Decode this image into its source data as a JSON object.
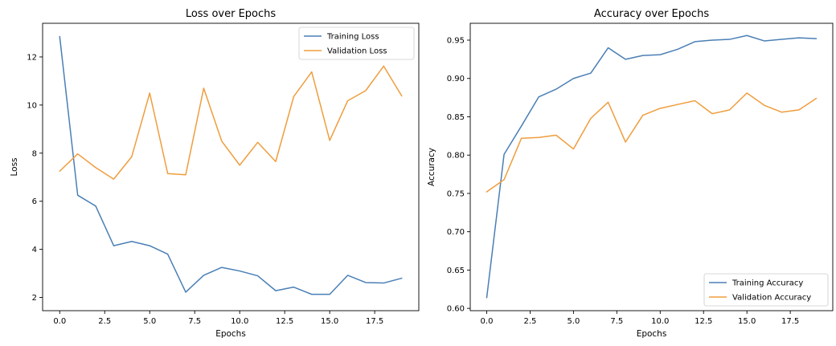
{
  "colors": {
    "training": "#4a7fb5",
    "validation": "#ef9d3d"
  },
  "chart_data": [
    {
      "type": "line",
      "title": "Loss over Epochs",
      "xlabel": "Epochs",
      "ylabel": "Loss",
      "xlim": [
        -0.95,
        19.95
      ],
      "ylim": [
        1.45,
        13.4
      ],
      "xticks": [
        0,
        2.5,
        5,
        7.5,
        10,
        12.5,
        15,
        17.5
      ],
      "xtick_labels": [
        "0.0",
        "2.5",
        "5.0",
        "7.5",
        "10.0",
        "12.5",
        "15.0",
        "17.5"
      ],
      "yticks": [
        2,
        4,
        6,
        8,
        10,
        12
      ],
      "ytick_labels": [
        "2",
        "4",
        "6",
        "8",
        "10",
        "12"
      ],
      "legend_position": "top-right",
      "grid": false,
      "x": [
        0,
        1,
        2,
        3,
        4,
        5,
        6,
        7,
        8,
        9,
        10,
        11,
        12,
        13,
        14,
        15,
        16,
        17,
        18,
        19
      ],
      "series": [
        {
          "name": "Training Loss",
          "color_key": "training",
          "values": [
            12.85,
            6.25,
            5.8,
            4.15,
            4.33,
            4.15,
            3.8,
            2.22,
            2.92,
            3.25,
            3.1,
            2.9,
            2.28,
            2.43,
            2.13,
            2.13,
            2.92,
            2.62,
            2.6,
            2.8
          ]
        },
        {
          "name": "Validation Loss",
          "color_key": "validation",
          "values": [
            7.25,
            7.97,
            7.4,
            6.92,
            7.85,
            10.5,
            7.15,
            7.1,
            10.7,
            8.5,
            7.5,
            8.45,
            7.65,
            10.35,
            11.38,
            8.53,
            10.18,
            10.6,
            11.62,
            10.38
          ]
        }
      ]
    },
    {
      "type": "line",
      "title": "Accuracy over Epochs",
      "xlabel": "Epochs",
      "ylabel": "Accuracy",
      "xlim": [
        -0.95,
        19.95
      ],
      "ylim": [
        0.597,
        0.972
      ],
      "xticks": [
        0,
        2.5,
        5,
        7.5,
        10,
        12.5,
        15,
        17.5
      ],
      "xtick_labels": [
        "0.0",
        "2.5",
        "5.0",
        "7.5",
        "10.0",
        "12.5",
        "15.0",
        "17.5"
      ],
      "yticks": [
        0.6,
        0.65,
        0.7,
        0.75,
        0.8,
        0.85,
        0.9,
        0.95
      ],
      "ytick_labels": [
        "0.60",
        "0.65",
        "0.70",
        "0.75",
        "0.80",
        "0.85",
        "0.90",
        "0.95"
      ],
      "legend_position": "bottom-right",
      "grid": false,
      "x": [
        0,
        1,
        2,
        3,
        4,
        5,
        6,
        7,
        8,
        9,
        10,
        11,
        12,
        13,
        14,
        15,
        16,
        17,
        18,
        19
      ],
      "series": [
        {
          "name": "Training Accuracy",
          "color_key": "training",
          "values": [
            0.614,
            0.801,
            0.838,
            0.876,
            0.886,
            0.9,
            0.907,
            0.94,
            0.925,
            0.93,
            0.931,
            0.938,
            0.948,
            0.95,
            0.951,
            0.956,
            0.949,
            0.951,
            0.953,
            0.952
          ]
        },
        {
          "name": "Validation Accuracy",
          "color_key": "validation",
          "values": [
            0.752,
            0.768,
            0.822,
            0.823,
            0.826,
            0.808,
            0.848,
            0.869,
            0.817,
            0.852,
            0.861,
            0.866,
            0.871,
            0.854,
            0.859,
            0.881,
            0.865,
            0.856,
            0.859,
            0.874
          ]
        }
      ]
    }
  ]
}
